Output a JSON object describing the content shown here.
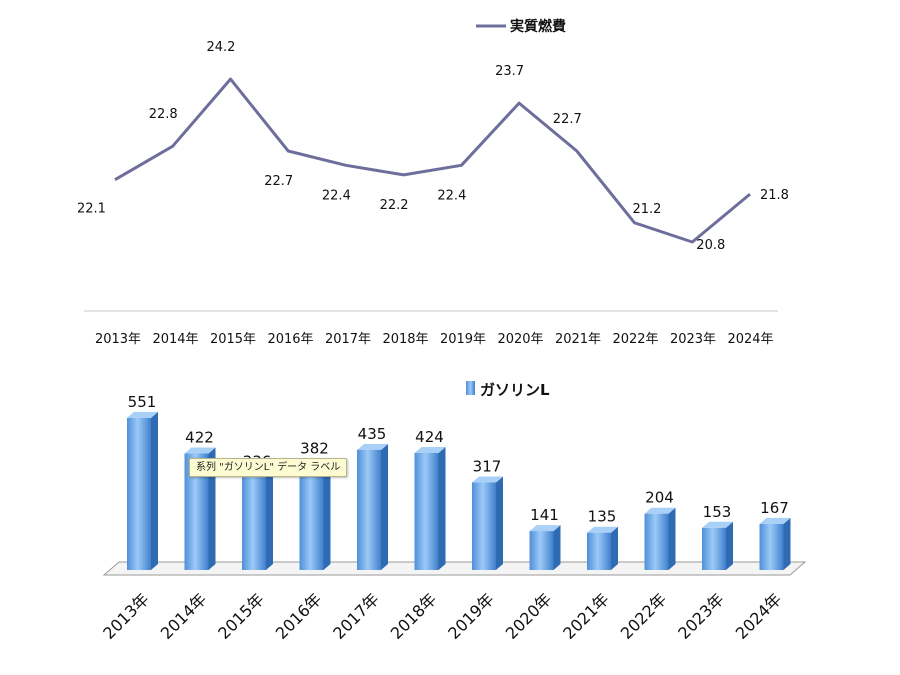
{
  "chart_data": [
    {
      "type": "line",
      "categories": [
        "2013年",
        "2014年",
        "2015年",
        "2016年",
        "2017年",
        "2018年",
        "2019年",
        "2020年",
        "2021年",
        "2022年",
        "2023年",
        "2024年"
      ],
      "series": [
        {
          "name": "実質燃費",
          "values": [
            22.1,
            22.8,
            24.2,
            22.7,
            22.4,
            22.2,
            22.4,
            23.7,
            22.7,
            21.2,
            20.8,
            21.8
          ]
        }
      ],
      "legend": "top-right",
      "color": "#6e6e9c",
      "grid": false
    },
    {
      "type": "bar",
      "categories": [
        "2013年",
        "2014年",
        "2015年",
        "2016年",
        "2017年",
        "2018年",
        "2019年",
        "2020年",
        "2021年",
        "2022年",
        "2023年",
        "2024年"
      ],
      "series": [
        {
          "name": "ガソリンL",
          "values": [
            551,
            422,
            336,
            382,
            435,
            424,
            317,
            141,
            135,
            204,
            153,
            167
          ]
        }
      ],
      "legend": "top-center",
      "color": "#5f9ee6",
      "grid": false,
      "tooltip": "系列 \"ガソリンL\" データ ラベル"
    }
  ]
}
